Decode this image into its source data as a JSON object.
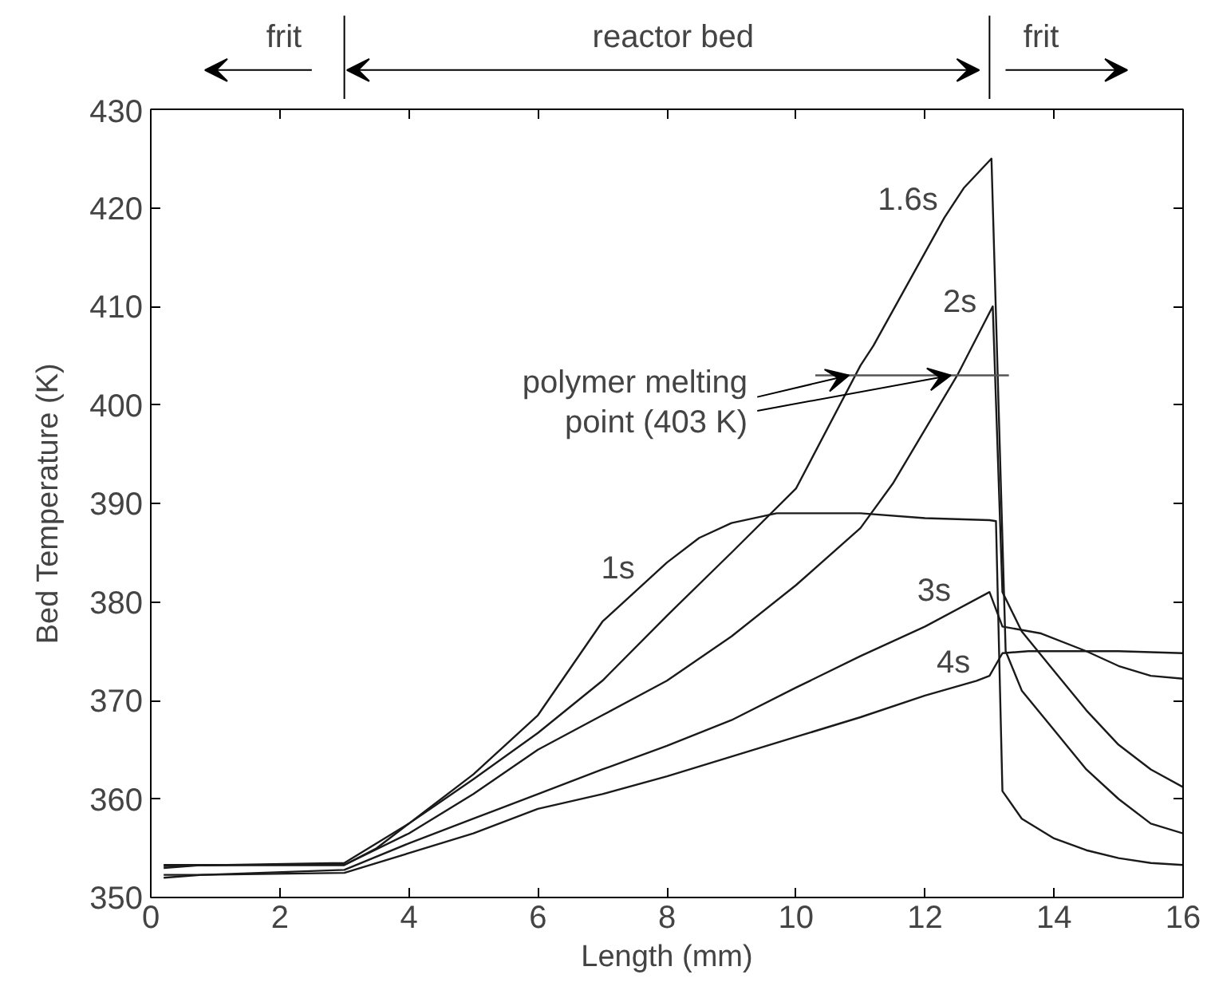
{
  "chart_data": {
    "type": "line",
    "xlabel": "Length (mm)",
    "ylabel": "Bed Temperature (K)",
    "xlim": [
      0,
      16
    ],
    "ylim": [
      350,
      430
    ],
    "xticks": [
      0,
      2,
      4,
      6,
      8,
      10,
      12,
      14,
      16
    ],
    "yticks": [
      350,
      360,
      370,
      380,
      390,
      400,
      410,
      420,
      430
    ],
    "grid": false,
    "marker": "none",
    "line_style": "solid",
    "series": [
      {
        "color": "#1a1a1a",
        "x": [
          0.2,
          0.8,
          2,
          3,
          3.5,
          4,
          5,
          6,
          7,
          8,
          8.5,
          9,
          9.7,
          10.5,
          11,
          12,
          13,
          13.1,
          13.2,
          13.5,
          14,
          14.5,
          15,
          15.5,
          16
        ],
        "values": [
          353.0,
          353.3,
          353.3,
          353.3,
          355,
          357.5,
          362.5,
          368.5,
          378,
          384,
          386.5,
          388,
          389,
          389,
          389,
          388.5,
          388.3,
          388.2,
          360.8,
          358,
          356,
          354.8,
          354,
          353.5,
          353.3
        ]
      },
      {
        "color": "#1a1a1a",
        "x": [
          0.2,
          3,
          4,
          5,
          6,
          7,
          8,
          9,
          10,
          11,
          11.2,
          12.3,
          12.6,
          13.03,
          13.25,
          13.5,
          14,
          14.5,
          15,
          15.5,
          16
        ],
        "values": [
          353.2,
          353.5,
          357.5,
          362,
          366.7,
          372,
          378.6,
          385,
          391.5,
          404,
          406,
          419,
          422,
          425,
          375,
          371,
          367,
          363,
          360,
          357.5,
          356.5
        ]
      },
      {
        "color": "#1a1a1a",
        "x": [
          0.2,
          3,
          4,
          5,
          6,
          7,
          8,
          9,
          10,
          11,
          11.5,
          12,
          12.5,
          13.05,
          13.2,
          13.5,
          14,
          14.5,
          15,
          15.5,
          16
        ],
        "values": [
          353.3,
          353.3,
          356.5,
          360.5,
          365,
          368.5,
          372,
          376.5,
          381.7,
          387.5,
          392,
          397.5,
          403,
          410,
          381,
          377,
          373,
          369,
          365.5,
          363,
          361.2
        ]
      },
      {
        "color": "#1a1a1a",
        "x": [
          0.2,
          0.8,
          3,
          4,
          5,
          6,
          7,
          8,
          9,
          10,
          11,
          12,
          13,
          13.2,
          13.8,
          14.5,
          15,
          15.5,
          16
        ],
        "values": [
          352,
          352.3,
          352.8,
          355.5,
          358,
          360.5,
          363,
          365.4,
          368,
          371.3,
          374.5,
          377.5,
          381,
          377.5,
          376.8,
          375,
          373.5,
          372.5,
          372.2
        ]
      },
      {
        "color": "#1a1a1a",
        "x": [
          0.2,
          0.8,
          3,
          4,
          5,
          6,
          7,
          8,
          9,
          10,
          11,
          12,
          12.8,
          13,
          13.2,
          13.6,
          15,
          16
        ],
        "values": [
          352.3,
          352.3,
          352.5,
          354.5,
          356.5,
          359,
          360.5,
          362.3,
          364.3,
          366.3,
          368.3,
          370.5,
          372,
          372.5,
          374.8,
          375,
          375,
          374.8
        ]
      },
      {
        "color": "#555555",
        "x": [
          10.3,
          13.3
        ],
        "values": [
          403,
          403
        ]
      }
    ],
    "annotations": [
      "frit",
      "reactor bed",
      "frit",
      {
        "text": "1s",
        "x": 7.6,
        "y": 381.6
      },
      {
        "text": "1.6s",
        "x": 12.3,
        "y": 419
      },
      {
        "text": "2s",
        "x": 12.9,
        "y": 408.6
      },
      {
        "text": "3s",
        "x": 12.5,
        "y": 379.3
      },
      {
        "text": "4s",
        "x": 12.8,
        "y": 372
      },
      {
        "text": "polymer melting point (403 K)",
        "x": 10.3,
        "y": 403
      }
    ]
  }
}
